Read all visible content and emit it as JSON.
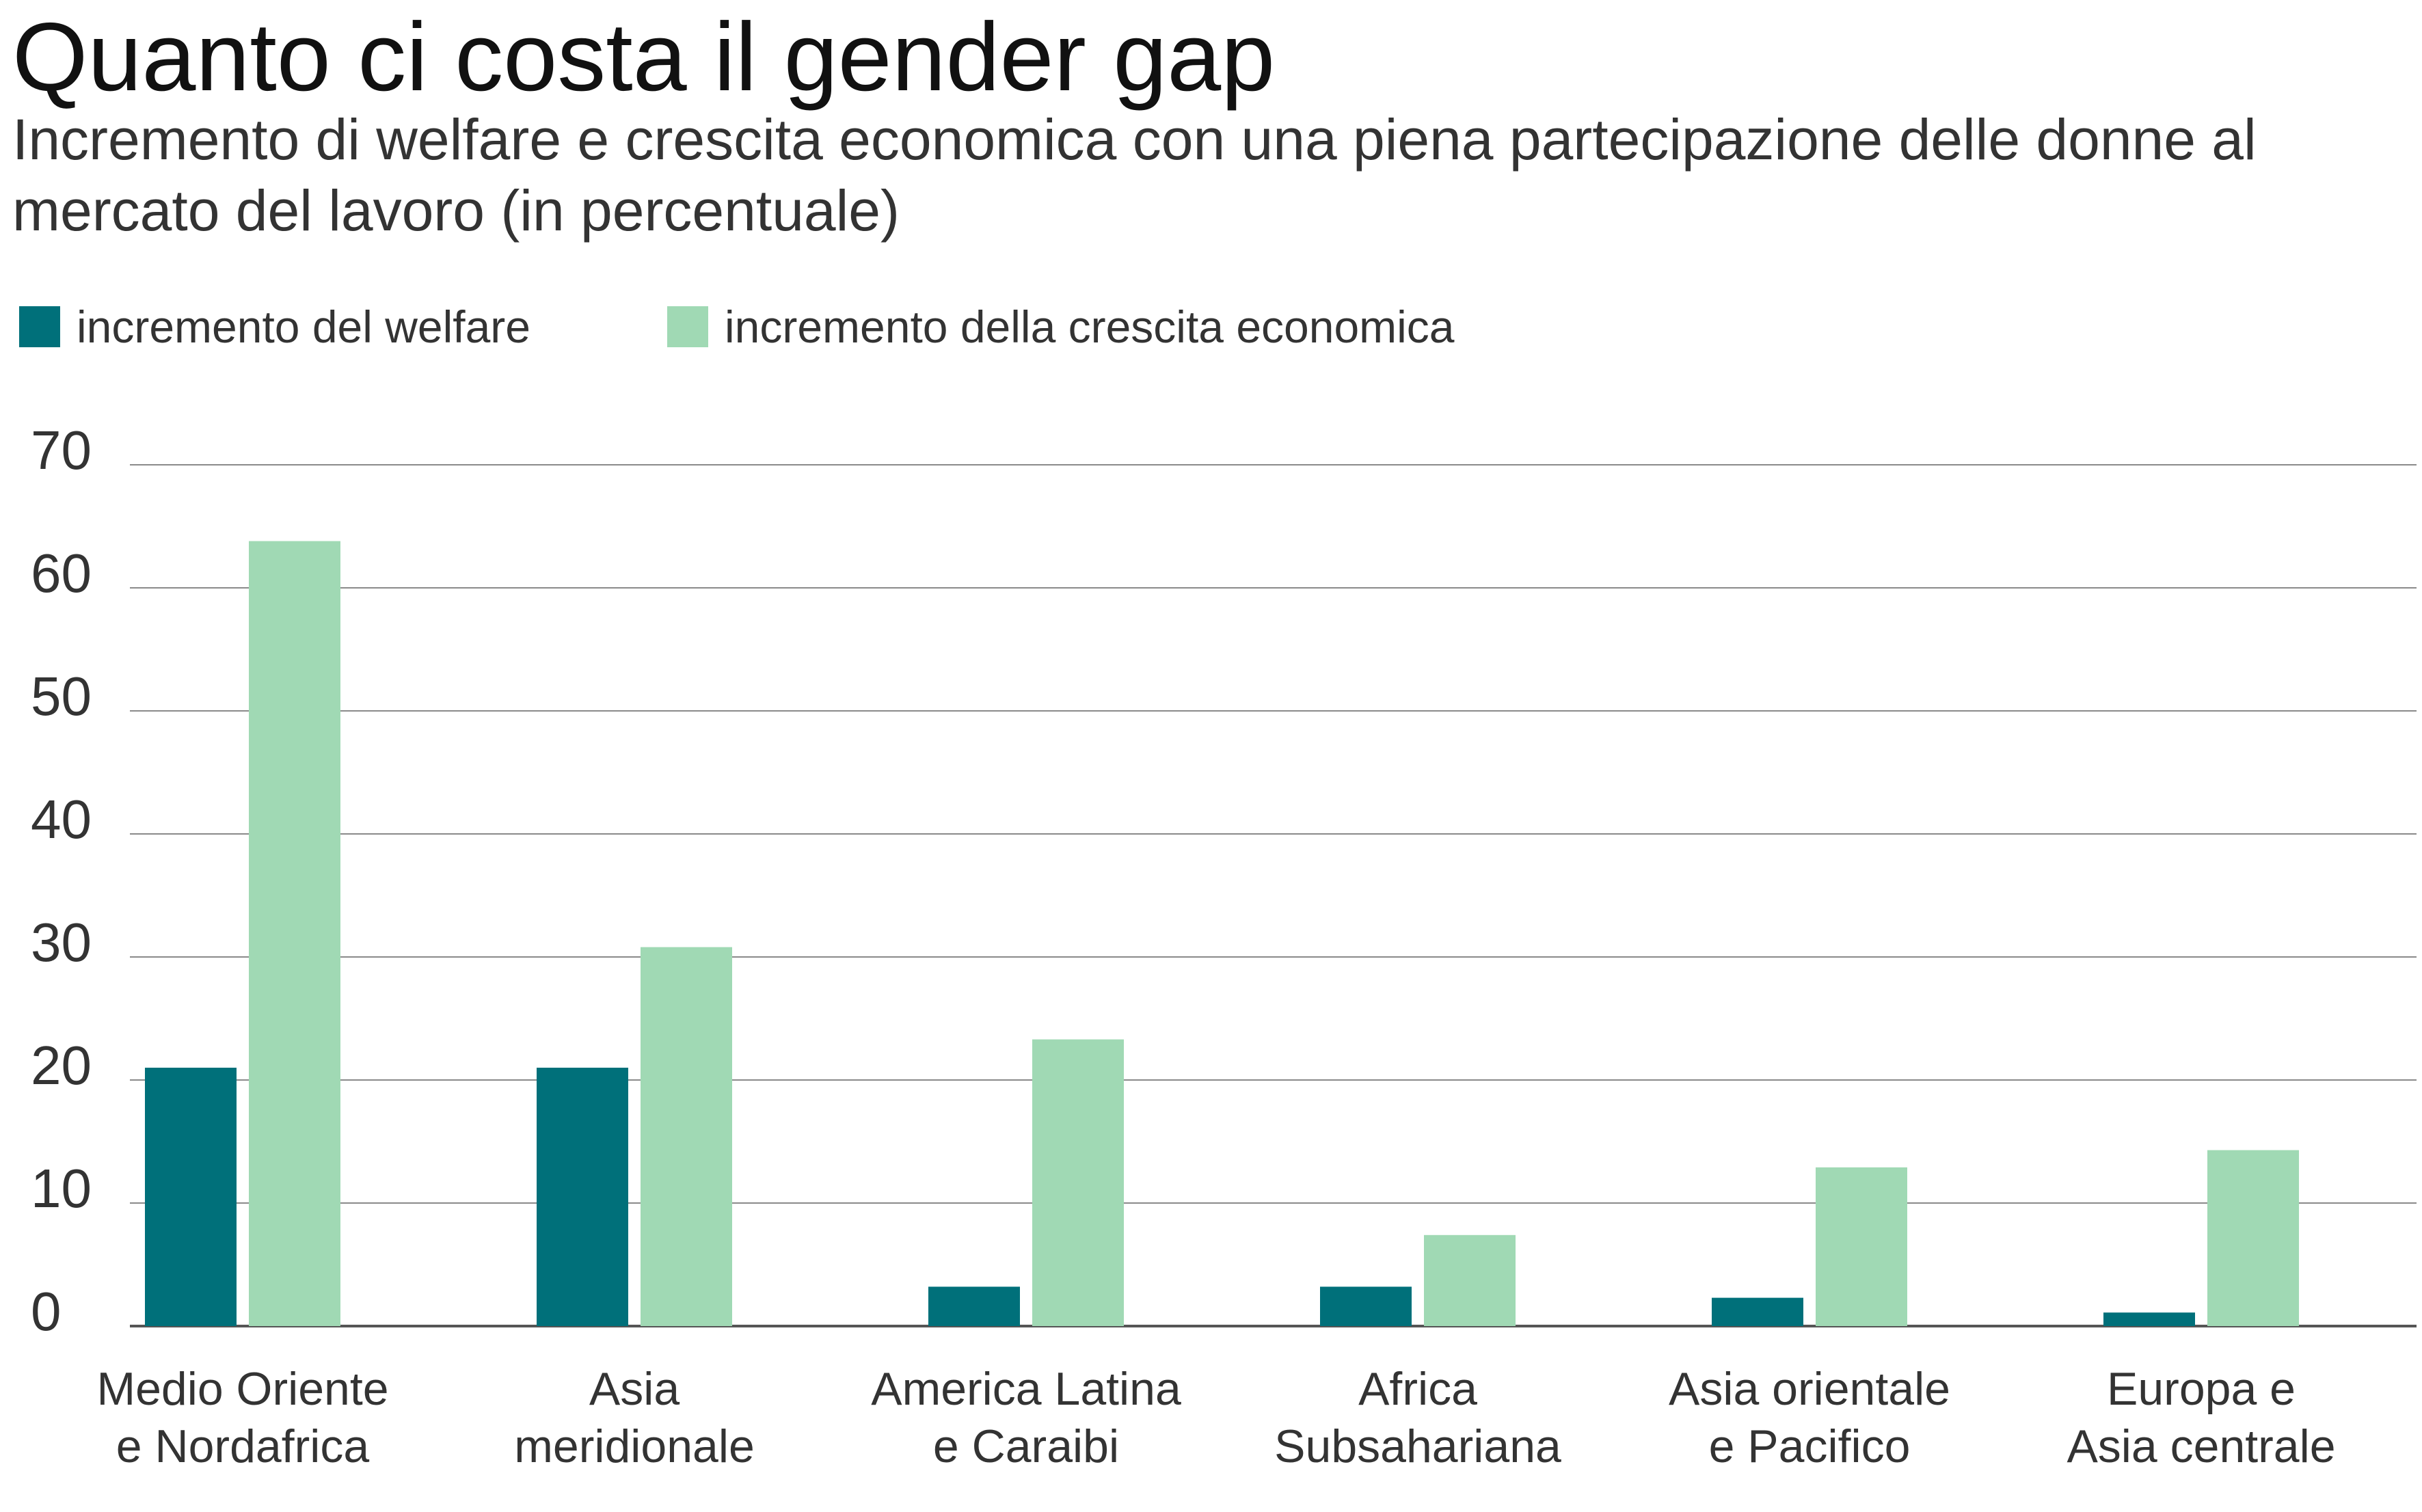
{
  "header": {
    "title": "Quanto ci costa il gender gap",
    "subtitle": "Incremento di welfare e crescita economica con una piena partecipazione delle donne al mercato del lavoro (in percentuale)"
  },
  "chart_data": {
    "type": "bar",
    "title": "Quanto ci costa il gender gap",
    "subtitle": "Incremento di welfare e crescita economica con una piena partecipazione delle donne al mercato del lavoro (in percentuale)",
    "categories": [
      [
        "Medio Oriente",
        "e Nordafrica"
      ],
      [
        "Asia",
        "meridionale"
      ],
      [
        "America Latina",
        "e Caraibi"
      ],
      [
        "Africa",
        "Subsahariana"
      ],
      [
        "Asia orientale",
        "e Pacifico"
      ],
      [
        "Europa e",
        "Asia centrale"
      ]
    ],
    "series": [
      {
        "name": "incremento del welfare",
        "color": "#00707a",
        "values": [
          21,
          21,
          3.2,
          3.2,
          2.3,
          1.1
        ]
      },
      {
        "name": "incremento della crescita economica",
        "color": "#a0d9b4",
        "values": [
          63.8,
          30.8,
          23.3,
          7.4,
          12.9,
          14.3
        ]
      }
    ],
    "yticks": [
      0,
      10,
      20,
      30,
      40,
      50,
      60,
      70
    ],
    "ylim": [
      0,
      70
    ],
    "xlabel": "",
    "ylabel": "",
    "grid": true,
    "legend_position": "top-left",
    "grid_color": "#8a8a8a",
    "axis_color": "#555555"
  }
}
